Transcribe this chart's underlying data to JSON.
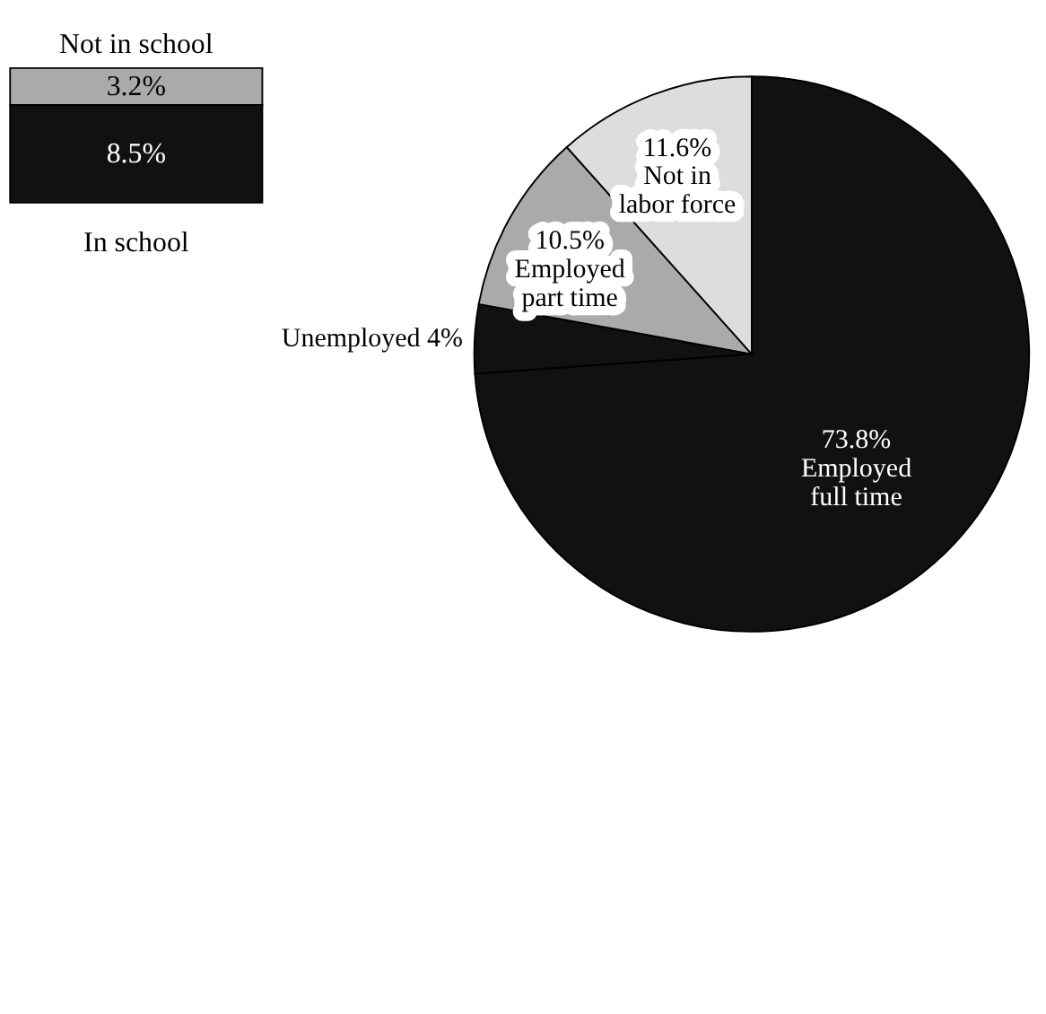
{
  "chart_data": [
    {
      "type": "bar",
      "stacked": true,
      "categories": [
        null
      ],
      "series": [
        {
          "name": "In school",
          "color": "#111111",
          "values": [
            8.5
          ],
          "value_labels": [
            "8.5%"
          ]
        },
        {
          "name": "Not in school",
          "color": "#aaaaaa",
          "values": [
            3.2
          ],
          "value_labels": [
            "3.2%"
          ]
        }
      ]
    },
    {
      "type": "pie",
      "categories": [
        "Employed full time",
        "Unemployed",
        "Employed part time",
        "Not in labor force"
      ],
      "values": [
        73.8,
        4,
        10.5,
        11.6
      ],
      "value_labels": [
        "73.8%",
        "4%",
        "10.5%",
        "11.6%"
      ],
      "colors": [
        "#111111",
        "#111111",
        "#aaaaaa",
        "#dddddd"
      ]
    }
  ]
}
